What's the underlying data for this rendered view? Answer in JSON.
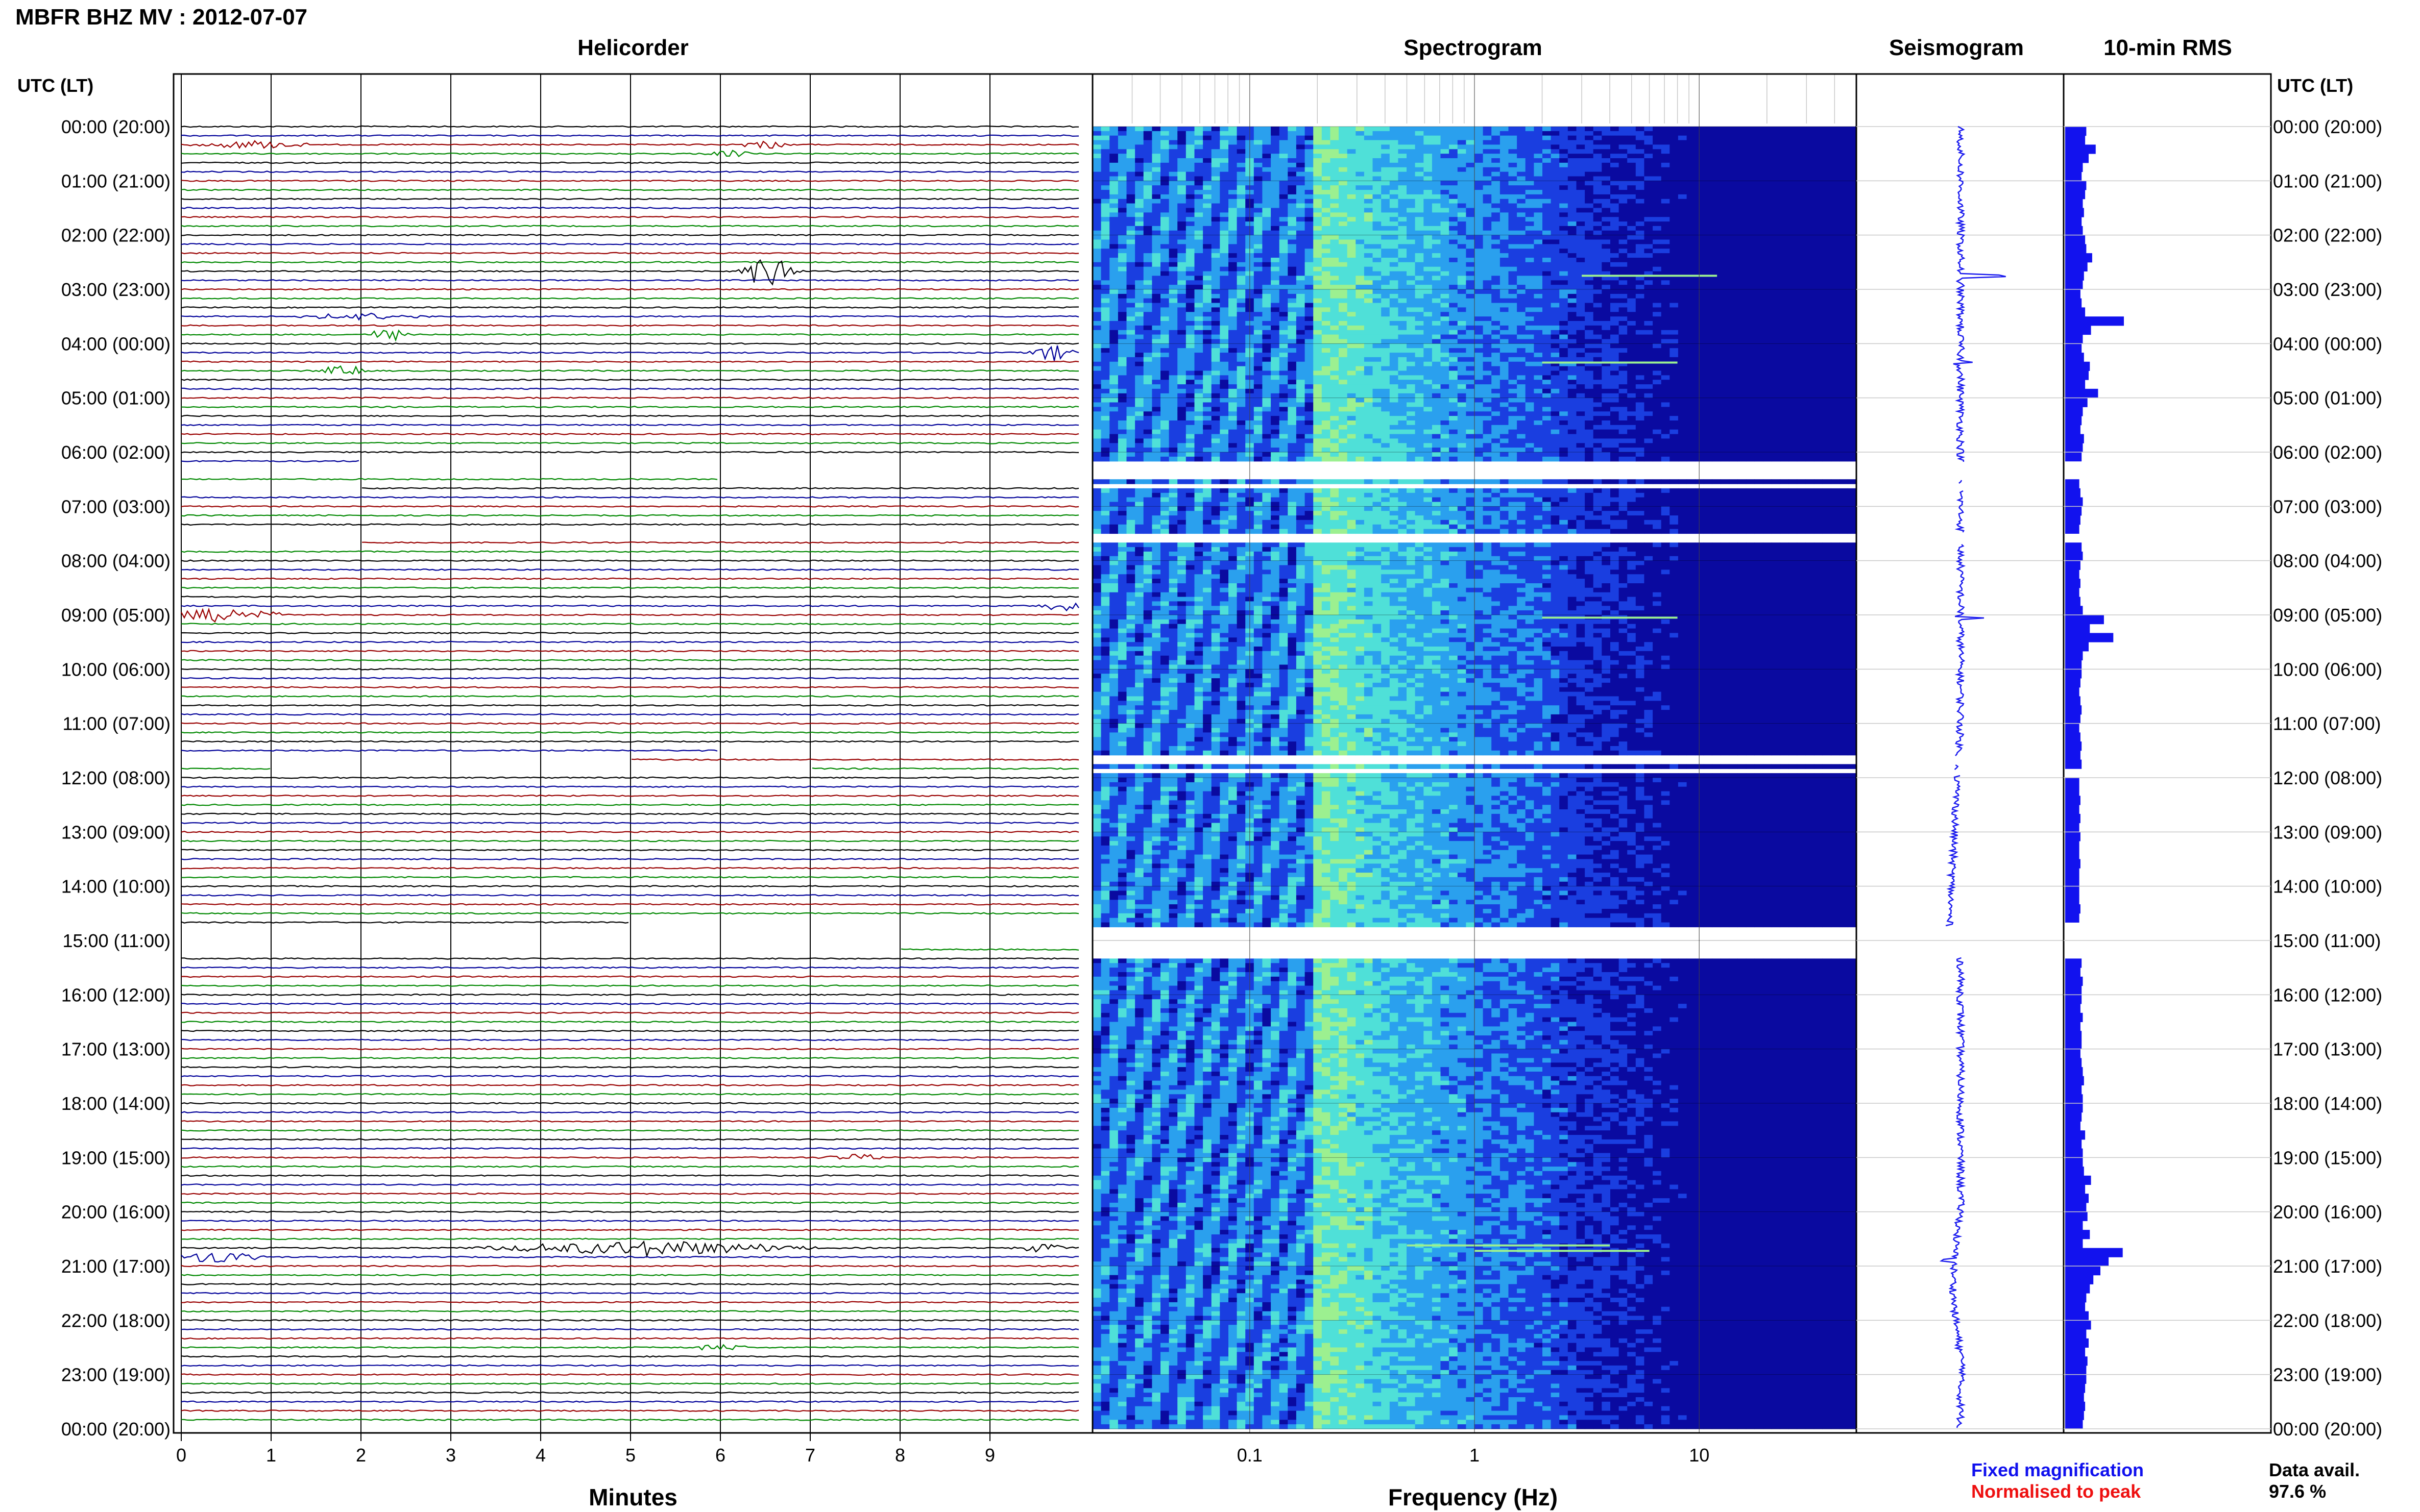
{
  "header": {
    "station_title": "MBFR BHZ MV : 2012-07-07",
    "panel_titles": [
      "Helicorder",
      "Spectrogram",
      "Seismogram",
      "10-min RMS"
    ],
    "time_axis_label": "UTC (LT)"
  },
  "legend": {
    "fixed": "Fixed magnification",
    "normalised": "Normalised to peak",
    "fixed_color": "#1010ee",
    "normalised_color": "#ee1010"
  },
  "data_availability": {
    "label": "Data avail.",
    "value": "97.6 %"
  },
  "colors": {
    "trace_cycle": [
      "#000000",
      "#000099",
      "#990000",
      "#008800"
    ],
    "seismogram": "#1a1aee",
    "rms_bar": "#1212ee",
    "grid": "#c8c8c8"
  },
  "chart_data": {
    "type": "heatmap",
    "time_ticks_utc_lt": [
      "00:00 (20:00)",
      "01:00 (21:00)",
      "02:00 (22:00)",
      "03:00 (23:00)",
      "04:00 (00:00)",
      "05:00 (01:00)",
      "06:00 (02:00)",
      "07:00 (03:00)",
      "08:00 (04:00)",
      "09:00 (05:00)",
      "10:00 (06:00)",
      "11:00 (07:00)",
      "12:00 (08:00)",
      "13:00 (09:00)",
      "14:00 (10:00)",
      "15:00 (11:00)",
      "16:00 (12:00)",
      "17:00 (13:00)",
      "18:00 (14:00)",
      "19:00 (15:00)",
      "20:00 (16:00)",
      "21:00 (17:00)",
      "22:00 (18:00)",
      "23:00 (19:00)",
      "00:00 (20:00)"
    ],
    "helicorder": {
      "xlabel": "Minutes",
      "x_ticks": [
        "0",
        "1",
        "2",
        "3",
        "4",
        "5",
        "6",
        "7",
        "8",
        "9"
      ],
      "xlim": [
        0,
        10
      ],
      "minutes_per_line": 10,
      "lines": 144,
      "events": [
        {
          "hour": 0.3,
          "minute": 0.8,
          "amp": 0.5,
          "width": 0.8
        },
        {
          "hour": 0.3,
          "minute": 6.5,
          "amp": 0.5,
          "width": 0.4
        },
        {
          "hour": 0.5,
          "minute": 6.1,
          "amp": 0.4,
          "width": 0.3
        },
        {
          "hour": 2.6,
          "minute": 6.55,
          "amp": 2.2,
          "width": 0.4
        },
        {
          "hour": 3.5,
          "minute": 2.0,
          "amp": 0.4,
          "width": 0.9
        },
        {
          "hour": 3.9,
          "minute": 2.3,
          "amp": 0.8,
          "width": 0.3
        },
        {
          "hour": 4.1,
          "minute": 9.7,
          "amp": 1.0,
          "width": 0.3
        },
        {
          "hour": 4.5,
          "minute": 1.8,
          "amp": 0.6,
          "width": 0.4
        },
        {
          "hour": 9.0,
          "minute": 0.5,
          "amp": 0.9,
          "width": 0.8
        },
        {
          "hour": 8.85,
          "minute": 9.8,
          "amp": 0.7,
          "width": 0.3
        },
        {
          "hour": 20.6,
          "minute": 5.2,
          "amp": 0.9,
          "width": 2.2
        },
        {
          "hour": 20.85,
          "minute": 0.4,
          "amp": 0.8,
          "width": 0.6
        },
        {
          "hour": 20.7,
          "minute": 9.6,
          "amp": 0.5,
          "width": 0.4
        },
        {
          "hour": 19.05,
          "minute": 7.5,
          "amp": 0.4,
          "width": 0.5
        },
        {
          "hour": 22.45,
          "minute": 6.0,
          "amp": 0.4,
          "width": 0.4
        }
      ]
    },
    "spectrogram": {
      "xlabel": "Frequency (Hz)",
      "x_scale": "log",
      "xlim": [
        0.02,
        50
      ],
      "x_ticks": [
        0.1,
        1,
        10
      ],
      "x_tick_labels": [
        "0.1",
        "1",
        "10"
      ],
      "colormap": [
        "#0a0aa0",
        "#1a3ee0",
        "#2aa0ee",
        "#4fe0d8",
        "#9cf090"
      ],
      "data_gaps_hours": [
        [
          6.25,
          6.45
        ],
        [
          6.6,
          6.7
        ],
        [
          7.55,
          7.65
        ],
        [
          11.65,
          11.75
        ],
        [
          11.85,
          11.95
        ],
        [
          14.75,
          15.3
        ]
      ],
      "tonal_lines": [
        {
          "hour": 2.75,
          "f_from": 3,
          "f_to": 12
        },
        {
          "hour": 4.35,
          "f_from": 2,
          "f_to": 8
        },
        {
          "hour": 9.05,
          "f_from": 2,
          "f_to": 8
        },
        {
          "hour": 20.62,
          "f_from": 0.5,
          "f_to": 4
        },
        {
          "hour": 20.72,
          "f_from": 1,
          "f_to": 6
        }
      ]
    },
    "seismogram": {
      "spikes": [
        {
          "hour": 2.75,
          "amp": 0.7
        },
        {
          "hour": 4.0,
          "amp": 0.25
        },
        {
          "hour": 4.35,
          "amp": 0.5
        },
        {
          "hour": 9.05,
          "amp": 0.5
        },
        {
          "hour": 20.6,
          "amp": 0.3
        },
        {
          "hour": 20.9,
          "amp": 0.2
        }
      ]
    },
    "rms_10min": {
      "xlim": [
        0,
        1
      ],
      "values": [
        0.36,
        0.34,
        0.52,
        0.4,
        0.3,
        0.28,
        0.36,
        0.34,
        0.3,
        0.32,
        0.28,
        0.3,
        0.34,
        0.36,
        0.46,
        0.38,
        0.32,
        0.3,
        0.26,
        0.28,
        0.34,
        1.0,
        0.44,
        0.3,
        0.28,
        0.32,
        0.42,
        0.4,
        0.34,
        0.56,
        0.38,
        0.3,
        0.28,
        0.26,
        0.32,
        0.3,
        0.28,
        0.3,
        0.26,
        0.24,
        0.26,
        0.3,
        0.28,
        0.26,
        0.24,
        0.26,
        0.28,
        0.3,
        0.26,
        0.24,
        0.26,
        0.24,
        0.26,
        0.3,
        0.66,
        0.42,
        0.82,
        0.4,
        0.3,
        0.28,
        0.28,
        0.26,
        0.24,
        0.26,
        0.28,
        0.26,
        0.24,
        0.26,
        0.28,
        0.26,
        0.28,
        0.26,
        0.24,
        0.24,
        0.26,
        0.24,
        0.26,
        0.24,
        0.26,
        0.24,
        0.24,
        0.26,
        0.24,
        0.24,
        0.24,
        0.24,
        0.26,
        0.24,
        0.24,
        0.26,
        0.24,
        0.24,
        0.28,
        0.26,
        0.3,
        0.28,
        0.28,
        0.26,
        0.3,
        0.26,
        0.28,
        0.28,
        0.26,
        0.28,
        0.3,
        0.32,
        0.28,
        0.3,
        0.3,
        0.28,
        0.26,
        0.34,
        0.28,
        0.3,
        0.3,
        0.32,
        0.44,
        0.34,
        0.4,
        0.36,
        0.38,
        0.3,
        0.42,
        0.3,
        0.98,
        0.74,
        0.6,
        0.48,
        0.42,
        0.36,
        0.34,
        0.4,
        0.44,
        0.36,
        0.4,
        0.34,
        0.38,
        0.36,
        0.36,
        0.34,
        0.32,
        0.34,
        0.32,
        0.3
      ]
    },
    "gaps_hours": [
      [
        6.2,
        6.5
      ],
      [
        6.6,
        6.7
      ],
      [
        7.5,
        7.7
      ],
      [
        11.6,
        11.75
      ],
      [
        11.85,
        11.95
      ],
      [
        14.75,
        15.3
      ]
    ]
  }
}
